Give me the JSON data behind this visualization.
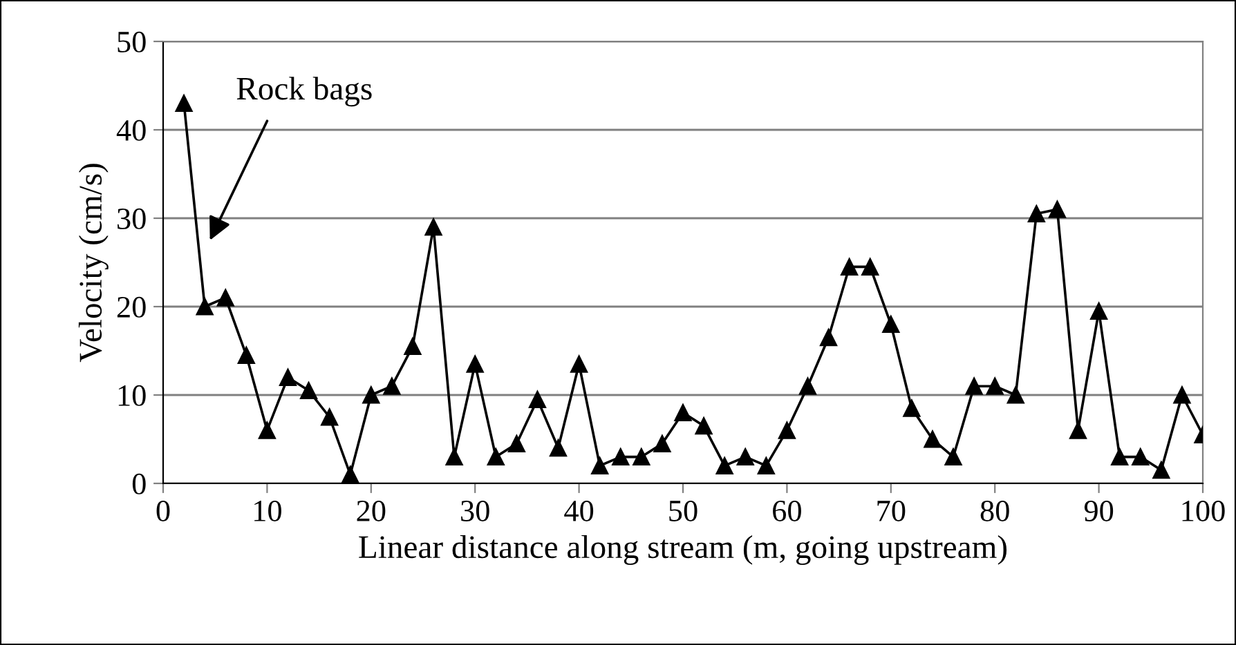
{
  "chart_data": {
    "type": "line",
    "xlabel": "Linear distance along stream (m, going upstream)",
    "ylabel": "Velocity (cm/s)",
    "x": [
      2,
      4,
      6,
      8,
      10,
      12,
      14,
      16,
      18,
      20,
      22,
      24,
      26,
      28,
      30,
      32,
      34,
      36,
      38,
      40,
      42,
      44,
      46,
      48,
      50,
      52,
      54,
      56,
      58,
      60,
      62,
      64,
      66,
      68,
      70,
      72,
      74,
      76,
      78,
      80,
      82,
      84,
      86,
      88,
      90,
      92,
      94,
      96,
      98,
      100
    ],
    "series": [
      {
        "color": "#000000",
        "values": [
          43,
          20,
          21,
          14.5,
          6,
          12,
          10.5,
          7.5,
          1,
          10,
          11,
          15.5,
          29,
          3,
          13.5,
          3,
          4.5,
          9.5,
          4,
          13.5,
          2,
          3,
          3,
          4.5,
          8,
          6.5,
          2,
          3,
          2,
          6,
          11,
          16.5,
          24.5,
          24.5,
          18,
          8.5,
          5,
          3,
          11,
          11,
          10,
          30.5,
          31,
          6,
          19.5,
          3,
          3,
          1.5,
          10,
          5.5
        ]
      }
    ],
    "xlim": [
      0,
      100
    ],
    "xticks": [
      0,
      10,
      20,
      30,
      40,
      50,
      60,
      70,
      80,
      90,
      100
    ],
    "ylim": [
      0,
      50
    ],
    "yticks": [
      0,
      10,
      20,
      30,
      40,
      50
    ],
    "grid": "y",
    "marker": "triangle",
    "line_style": "solid",
    "annotations": [
      "Rock bags"
    ]
  }
}
